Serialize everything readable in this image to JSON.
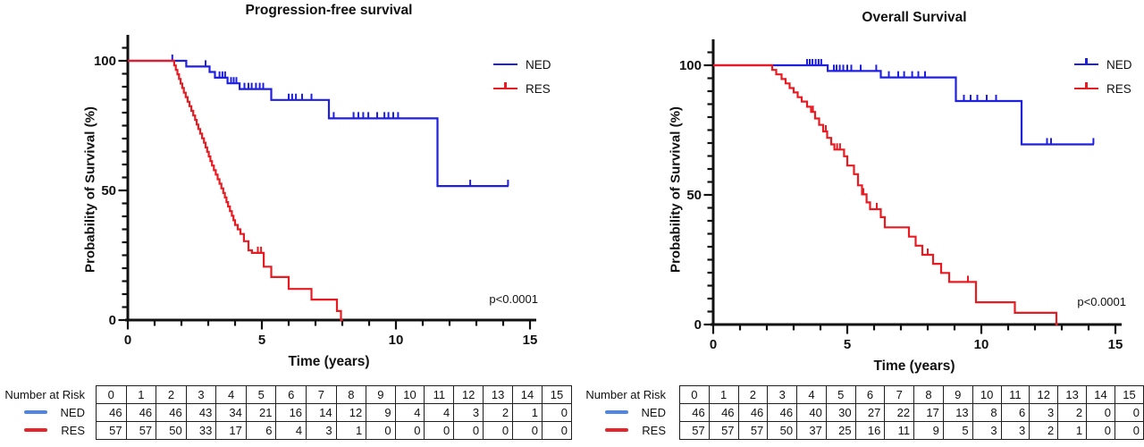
{
  "chart_data": [
    {
      "type": "line",
      "subtype": "kaplan-meier",
      "title": "Progression-free survival",
      "xlabel": "Time (years)",
      "ylabel": "Probability of Survival (%)",
      "annotation": "p<0.0001",
      "xlim": [
        0,
        15
      ],
      "ylim": [
        0,
        100
      ],
      "x_ticks": [
        0,
        5,
        10,
        15
      ],
      "y_ticks": [
        0,
        50,
        100
      ],
      "x_minor_tick_step": 1,
      "y_minor_tick_step": 5,
      "grid": false,
      "legend_position": "top-right",
      "series": [
        {
          "name": "NED",
          "color": "#1F1FE0",
          "legend_tick": false,
          "steps": [
            [
              0,
              100
            ],
            [
              2.18,
              97.8
            ],
            [
              3.05,
              95.7
            ],
            [
              3.25,
              93.5
            ],
            [
              3.72,
              91.3
            ],
            [
              4.17,
              89.1
            ],
            [
              5.35,
              84.9
            ],
            [
              7.5,
              77.8
            ],
            [
              11.55,
              51.7
            ],
            [
              14.2,
              51.7
            ]
          ],
          "censor_times": [
            1.66,
            2.9,
            3.42,
            3.53,
            3.63,
            3.85,
            3.95,
            4.05,
            4.35,
            4.5,
            4.62,
            4.78,
            4.92,
            5.05,
            6.0,
            6.13,
            6.27,
            6.5,
            6.85,
            7.68,
            8.42,
            8.6,
            8.78,
            8.97,
            9.3,
            9.57,
            9.72,
            9.9,
            10.08,
            12.77,
            14.18
          ]
        },
        {
          "name": "RES",
          "color": "#E81B22",
          "legend_tick": true,
          "steps": [
            [
              0,
              100
            ],
            [
              1.73,
              98.2
            ],
            [
              1.79,
              96.5
            ],
            [
              1.85,
              94.8
            ],
            [
              1.91,
              93
            ],
            [
              1.97,
              91.2
            ],
            [
              2.03,
              89.5
            ],
            [
              2.09,
              87.7
            ],
            [
              2.16,
              86
            ],
            [
              2.23,
              84.2
            ],
            [
              2.3,
              82.5
            ],
            [
              2.37,
              80.7
            ],
            [
              2.44,
              78.9
            ],
            [
              2.51,
              77.2
            ],
            [
              2.57,
              75.4
            ],
            [
              2.63,
              73.7
            ],
            [
              2.7,
              71.9
            ],
            [
              2.77,
              70.1
            ],
            [
              2.84,
              68.4
            ],
            [
              2.9,
              66.6
            ],
            [
              2.96,
              64.9
            ],
            [
              3.02,
              63.1
            ],
            [
              3.08,
              61.3
            ],
            [
              3.14,
              59.6
            ],
            [
              3.21,
              57.8
            ],
            [
              3.28,
              56.1
            ],
            [
              3.35,
              54.3
            ],
            [
              3.42,
              52.6
            ],
            [
              3.49,
              50.8
            ],
            [
              3.56,
              49
            ],
            [
              3.62,
              47.3
            ],
            [
              3.68,
              45.5
            ],
            [
              3.74,
              43.8
            ],
            [
              3.81,
              42
            ],
            [
              3.88,
              40.2
            ],
            [
              3.94,
              38.5
            ],
            [
              4,
              36.7
            ],
            [
              4.1,
              35
            ],
            [
              4.2,
              33.2
            ],
            [
              4.33,
              30.4
            ],
            [
              4.5,
              26.9
            ],
            [
              4.63,
              25.9
            ],
            [
              5.07,
              20.6
            ],
            [
              5.35,
              16.6
            ],
            [
              6,
              12
            ],
            [
              6.85,
              7.9
            ],
            [
              7.8,
              3.5
            ],
            [
              7.95,
              0
            ],
            [
              8.02,
              0
            ]
          ],
          "censor_times": [
            4.85,
            4.97
          ]
        }
      ],
      "risk_table": {
        "label": "Number at Risk",
        "time": [
          0,
          1,
          2,
          3,
          4,
          5,
          6,
          7,
          8,
          9,
          10,
          11,
          12,
          13,
          14,
          15
        ],
        "rows": [
          {
            "name": "NED",
            "color": "#4E86E8",
            "values": [
              46,
              46,
              46,
              43,
              34,
              21,
              16,
              14,
              12,
              9,
              4,
              4,
              3,
              2,
              1,
              0
            ]
          },
          {
            "name": "RES",
            "color": "#E8242B",
            "values": [
              57,
              57,
              50,
              33,
              17,
              6,
              4,
              3,
              1,
              0,
              0,
              0,
              0,
              0,
              0,
              0
            ]
          }
        ]
      }
    },
    {
      "type": "line",
      "subtype": "kaplan-meier",
      "title": "Overall Survival",
      "xlabel": "Time (years)",
      "ylabel": "Probability of Survival (%)",
      "annotation": "p<0.0001",
      "xlim": [
        0,
        15
      ],
      "ylim": [
        0,
        100
      ],
      "x_ticks": [
        0,
        5,
        10,
        15
      ],
      "y_ticks": [
        0,
        50,
        100
      ],
      "x_minor_tick_step": 1,
      "y_minor_tick_step": 5,
      "grid": false,
      "legend_position": "top-right",
      "series": [
        {
          "name": "NED",
          "color": "#1F1FE0",
          "legend_tick": true,
          "steps": [
            [
              0,
              100
            ],
            [
              4.27,
              97.8
            ],
            [
              6.25,
              95.3
            ],
            [
              9.05,
              86.2
            ],
            [
              11.5,
              69.5
            ],
            [
              14.2,
              69.5
            ]
          ],
          "censor_times": [
            3.5,
            3.6,
            3.7,
            3.82,
            3.93,
            4.03,
            4.5,
            4.6,
            4.72,
            4.85,
            5.0,
            5.15,
            5.5,
            6.08,
            6.55,
            6.9,
            7.12,
            7.42,
            7.65,
            7.9,
            9.35,
            9.6,
            9.85,
            10.2,
            10.55,
            12.45,
            12.6,
            14.18
          ]
        },
        {
          "name": "RES",
          "color": "#E81B22",
          "legend_tick": true,
          "steps": [
            [
              0,
              100
            ],
            [
              2.2,
              98.2
            ],
            [
              2.35,
              96.5
            ],
            [
              2.55,
              94.7
            ],
            [
              2.7,
              93
            ],
            [
              2.85,
              91.2
            ],
            [
              3,
              89.5
            ],
            [
              3.15,
              87.7
            ],
            [
              3.3,
              86
            ],
            [
              3.5,
              84
            ],
            [
              3.65,
              82
            ],
            [
              3.8,
              79.5
            ],
            [
              3.95,
              77
            ],
            [
              4.1,
              74.5
            ],
            [
              4.25,
              72
            ],
            [
              4.4,
              69.5
            ],
            [
              4.52,
              67.5
            ],
            [
              4.88,
              64.9
            ],
            [
              5,
              61.3
            ],
            [
              5.25,
              58
            ],
            [
              5.4,
              53.7
            ],
            [
              5.55,
              50.2
            ],
            [
              5.72,
              47.1
            ],
            [
              5.85,
              44.5
            ],
            [
              6.25,
              41.4
            ],
            [
              6.4,
              37.5
            ],
            [
              7.3,
              33.9
            ],
            [
              7.55,
              30.4
            ],
            [
              7.8,
              26.9
            ],
            [
              8.2,
              23.4
            ],
            [
              8.5,
              19.9
            ],
            [
              8.8,
              16.4
            ],
            [
              9.8,
              8.6
            ],
            [
              11.25,
              4.5
            ],
            [
              12.8,
              0
            ],
            [
              12.85,
              0
            ]
          ],
          "censor_times": [
            3.72,
            4.2,
            4.62,
            4.73,
            5.6,
            6.1,
            8.0,
            9.5
          ]
        }
      ],
      "risk_table": {
        "label": "Number at Risk",
        "time": [
          0,
          1,
          2,
          3,
          4,
          5,
          6,
          7,
          8,
          9,
          10,
          11,
          12,
          13,
          14,
          15
        ],
        "rows": [
          {
            "name": "NED",
            "color": "#4E86E8",
            "values": [
              46,
              46,
              46,
              46,
              40,
              30,
              27,
              22,
              17,
              13,
              8,
              6,
              3,
              2,
              0,
              0
            ]
          },
          {
            "name": "RES",
            "color": "#E8242B",
            "values": [
              57,
              57,
              57,
              50,
              37,
              25,
              16,
              11,
              9,
              5,
              3,
              3,
              2,
              1,
              0,
              0
            ]
          }
        ]
      }
    }
  ]
}
